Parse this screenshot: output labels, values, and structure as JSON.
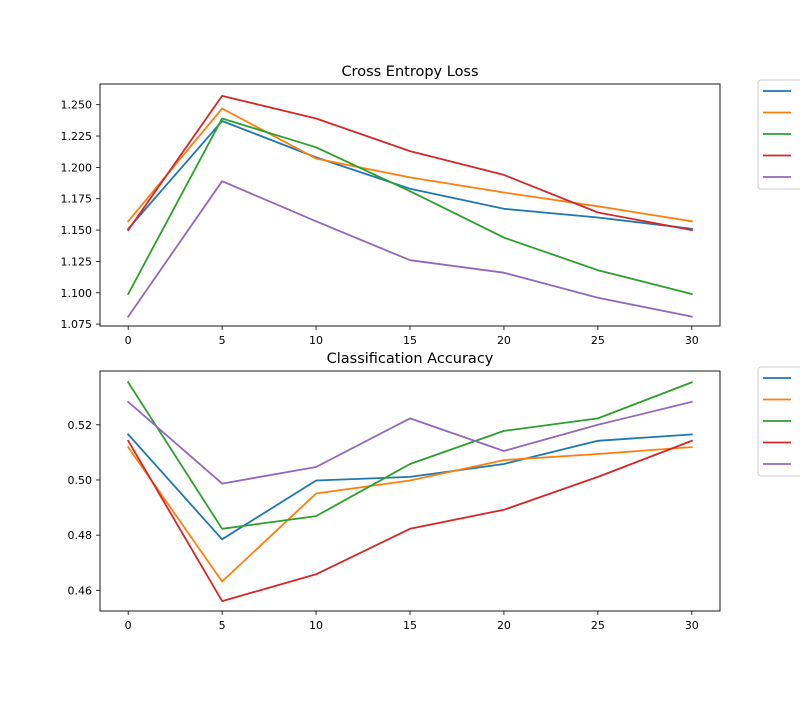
{
  "chart_data": [
    {
      "type": "line",
      "title": "Cross Entropy Loss",
      "xlabel": "",
      "ylabel": "",
      "x": [
        0,
        5,
        10,
        15,
        20,
        25,
        30
      ],
      "xlim": [
        -1.5,
        31.5
      ],
      "ylim": [
        1.0735,
        1.2665
      ],
      "xticks": [
        0,
        5,
        10,
        15,
        20,
        25,
        30
      ],
      "yticks": [
        1.075,
        1.1,
        1.125,
        1.15,
        1.175,
        1.2,
        1.225,
        1.25
      ],
      "ytick_decimals": 3,
      "legend": "outside-right",
      "series": [
        {
          "color": "#1f77b4",
          "values": [
            1.151,
            1.237,
            1.208,
            1.183,
            1.167,
            1.16,
            1.151
          ]
        },
        {
          "color": "#ff7f0e",
          "values": [
            1.157,
            1.247,
            1.207,
            1.192,
            1.18,
            1.169,
            1.157
          ]
        },
        {
          "color": "#2ca02c",
          "values": [
            1.099,
            1.239,
            1.216,
            1.181,
            1.144,
            1.118,
            1.099
          ]
        },
        {
          "color": "#d62728",
          "values": [
            1.15,
            1.257,
            1.239,
            1.213,
            1.194,
            1.164,
            1.15
          ]
        },
        {
          "color": "#9467bd",
          "values": [
            1.081,
            1.189,
            1.157,
            1.126,
            1.116,
            1.096,
            1.081
          ]
        }
      ]
    },
    {
      "type": "line",
      "title": "Classification Accuracy",
      "xlabel": "",
      "ylabel": "",
      "x": [
        0,
        5,
        10,
        15,
        20,
        25,
        30
      ],
      "xlim": [
        -1.5,
        31.5
      ],
      "ylim": [
        0.4525,
        0.5395
      ],
      "xticks": [
        0,
        5,
        10,
        15,
        20,
        25,
        30
      ],
      "yticks": [
        0.46,
        0.48,
        0.5,
        0.52
      ],
      "ytick_decimals": 2,
      "legend": "outside-right",
      "series": [
        {
          "color": "#1f77b4",
          "values": [
            0.5165,
            0.4785,
            0.4998,
            0.5011,
            0.5058,
            0.5142,
            0.5165
          ]
        },
        {
          "color": "#ff7f0e",
          "values": [
            0.5119,
            0.4632,
            0.4951,
            0.4998,
            0.5072,
            0.5094,
            0.5119
          ]
        },
        {
          "color": "#2ca02c",
          "values": [
            0.5354,
            0.4823,
            0.4869,
            0.5058,
            0.5178,
            0.5223,
            0.5354
          ]
        },
        {
          "color": "#d62728",
          "values": [
            0.5142,
            0.4561,
            0.4658,
            0.4823,
            0.4892,
            0.5011,
            0.5142
          ]
        },
        {
          "color": "#9467bd",
          "values": [
            0.5283,
            0.4987,
            0.5047,
            0.5223,
            0.5105,
            0.52,
            0.5283
          ]
        }
      ]
    }
  ]
}
